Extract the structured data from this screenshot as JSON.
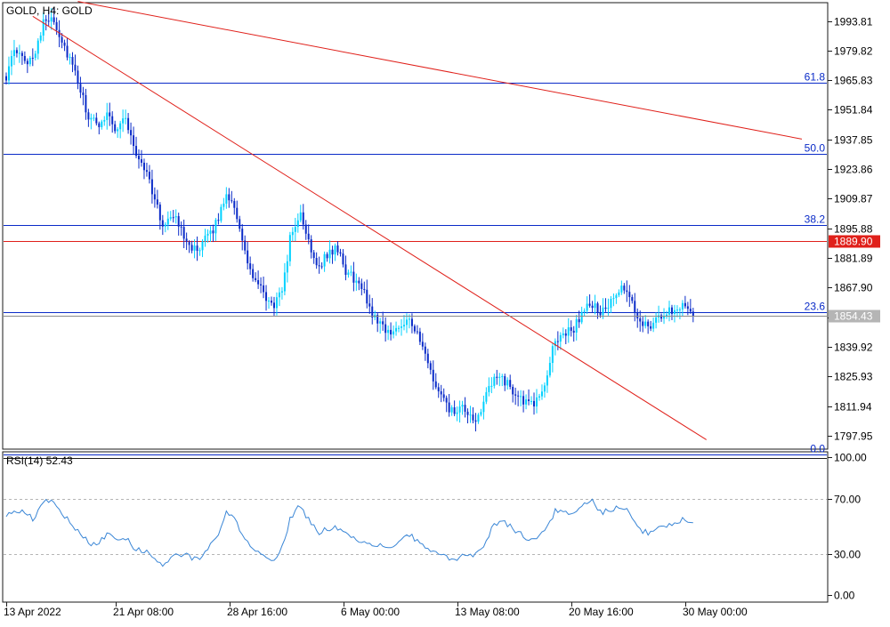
{
  "chart_title": "GOLD, H4:  GOLD",
  "rsi_label": "RSI(14) 52.43",
  "colors": {
    "bull": "#00D1FF",
    "bear": "#0A2BC8",
    "fib": "#0A2BC8",
    "trend": "#E0201A",
    "rsi": "#3A86D6",
    "price_label": "#E0201A",
    "current_label": "#B5B5B5"
  },
  "chart_data": [
    {
      "type": "candlestick",
      "title": "GOLD, H4:  GOLD",
      "ylim": [
        1792.0,
        2002.0
      ],
      "y_ticks": [
        1993.81,
        1979.82,
        1965.83,
        1951.84,
        1937.85,
        1923.86,
        1909.87,
        1895.88,
        1881.89,
        1867.9,
        1853.91,
        1839.92,
        1825.93,
        1811.94,
        1797.95
      ],
      "y_tick_labels": [
        "1993.81",
        "1979.82",
        "1965.83",
        "1951.84",
        "1937.85",
        "1923.86",
        "1909.87",
        "1895.88",
        "1881.89",
        "1867.90",
        "",
        "1839.92",
        "1825.93",
        "1811.94",
        "1797.95"
      ],
      "x_tick_labels": [
        "13 Apr 2022",
        "21 Apr 08:00",
        "28 Apr 16:00",
        "6 May 00:00",
        "13 May 08:00",
        "20 May 16:00",
        "30 May 00:00"
      ],
      "close_path": [
        1968,
        1980,
        1974,
        1978,
        1992,
        1997,
        1985,
        1975,
        1962,
        1948,
        1944,
        1951,
        1942,
        1949,
        1932,
        1926,
        1913,
        1897,
        1903,
        1896,
        1889,
        1883,
        1893,
        1898,
        1913,
        1906,
        1884,
        1872,
        1865,
        1859,
        1864,
        1891,
        1903,
        1890,
        1878,
        1883,
        1887,
        1876,
        1872,
        1866,
        1855,
        1851,
        1845,
        1851,
        1854,
        1844,
        1832,
        1820,
        1812,
        1808,
        1811,
        1803,
        1813,
        1822,
        1827,
        1820,
        1817,
        1812,
        1814,
        1826,
        1844,
        1846,
        1849,
        1857,
        1860,
        1856,
        1860,
        1867,
        1864,
        1853,
        1850,
        1852,
        1856,
        1858,
        1861,
        1856
      ],
      "current_price": 1854.43,
      "horizontal_line": {
        "value": 1889.9,
        "label": "1889.90"
      },
      "fibonacci": [
        {
          "level": "61.8",
          "value": 1964.6
        },
        {
          "level": "50.0",
          "value": 1931.1
        },
        {
          "level": "38.2",
          "value": 1897.5
        },
        {
          "level": "23.6",
          "value": 1856.1
        },
        {
          "level": "0.0",
          "value": 1789.1
        }
      ],
      "trendlines": [
        {
          "from": {
            "bar": 27,
            "value": 2003
          },
          "to": {
            "bar": 300,
            "value": 1938
          }
        },
        {
          "from": {
            "bar": 10,
            "value": 1996
          },
          "to": {
            "bar": 264,
            "value": 1796
          }
        }
      ]
    },
    {
      "type": "line",
      "title": "RSI(14) 52.43",
      "ylim": [
        0,
        100
      ],
      "y_ticks": [
        100,
        70,
        30,
        0
      ],
      "y_tick_labels": [
        "100.00",
        "70.00",
        "30.00",
        "0.00"
      ],
      "levels": [
        70,
        30
      ],
      "values": [
        57,
        62,
        60,
        55,
        67,
        70,
        60,
        52,
        45,
        38,
        36,
        45,
        40,
        42,
        34,
        32,
        28,
        22,
        27,
        30,
        28,
        25,
        34,
        40,
        60,
        55,
        40,
        33,
        28,
        25,
        32,
        55,
        65,
        55,
        45,
        48,
        50,
        45,
        42,
        38,
        35,
        36,
        34,
        40,
        44,
        38,
        32,
        30,
        28,
        25,
        30,
        28,
        35,
        48,
        55,
        50,
        45,
        40,
        42,
        48,
        62,
        60,
        58,
        65,
        68,
        60,
        62,
        65,
        60,
        48,
        45,
        47,
        50,
        52,
        56,
        52.43
      ]
    }
  ]
}
